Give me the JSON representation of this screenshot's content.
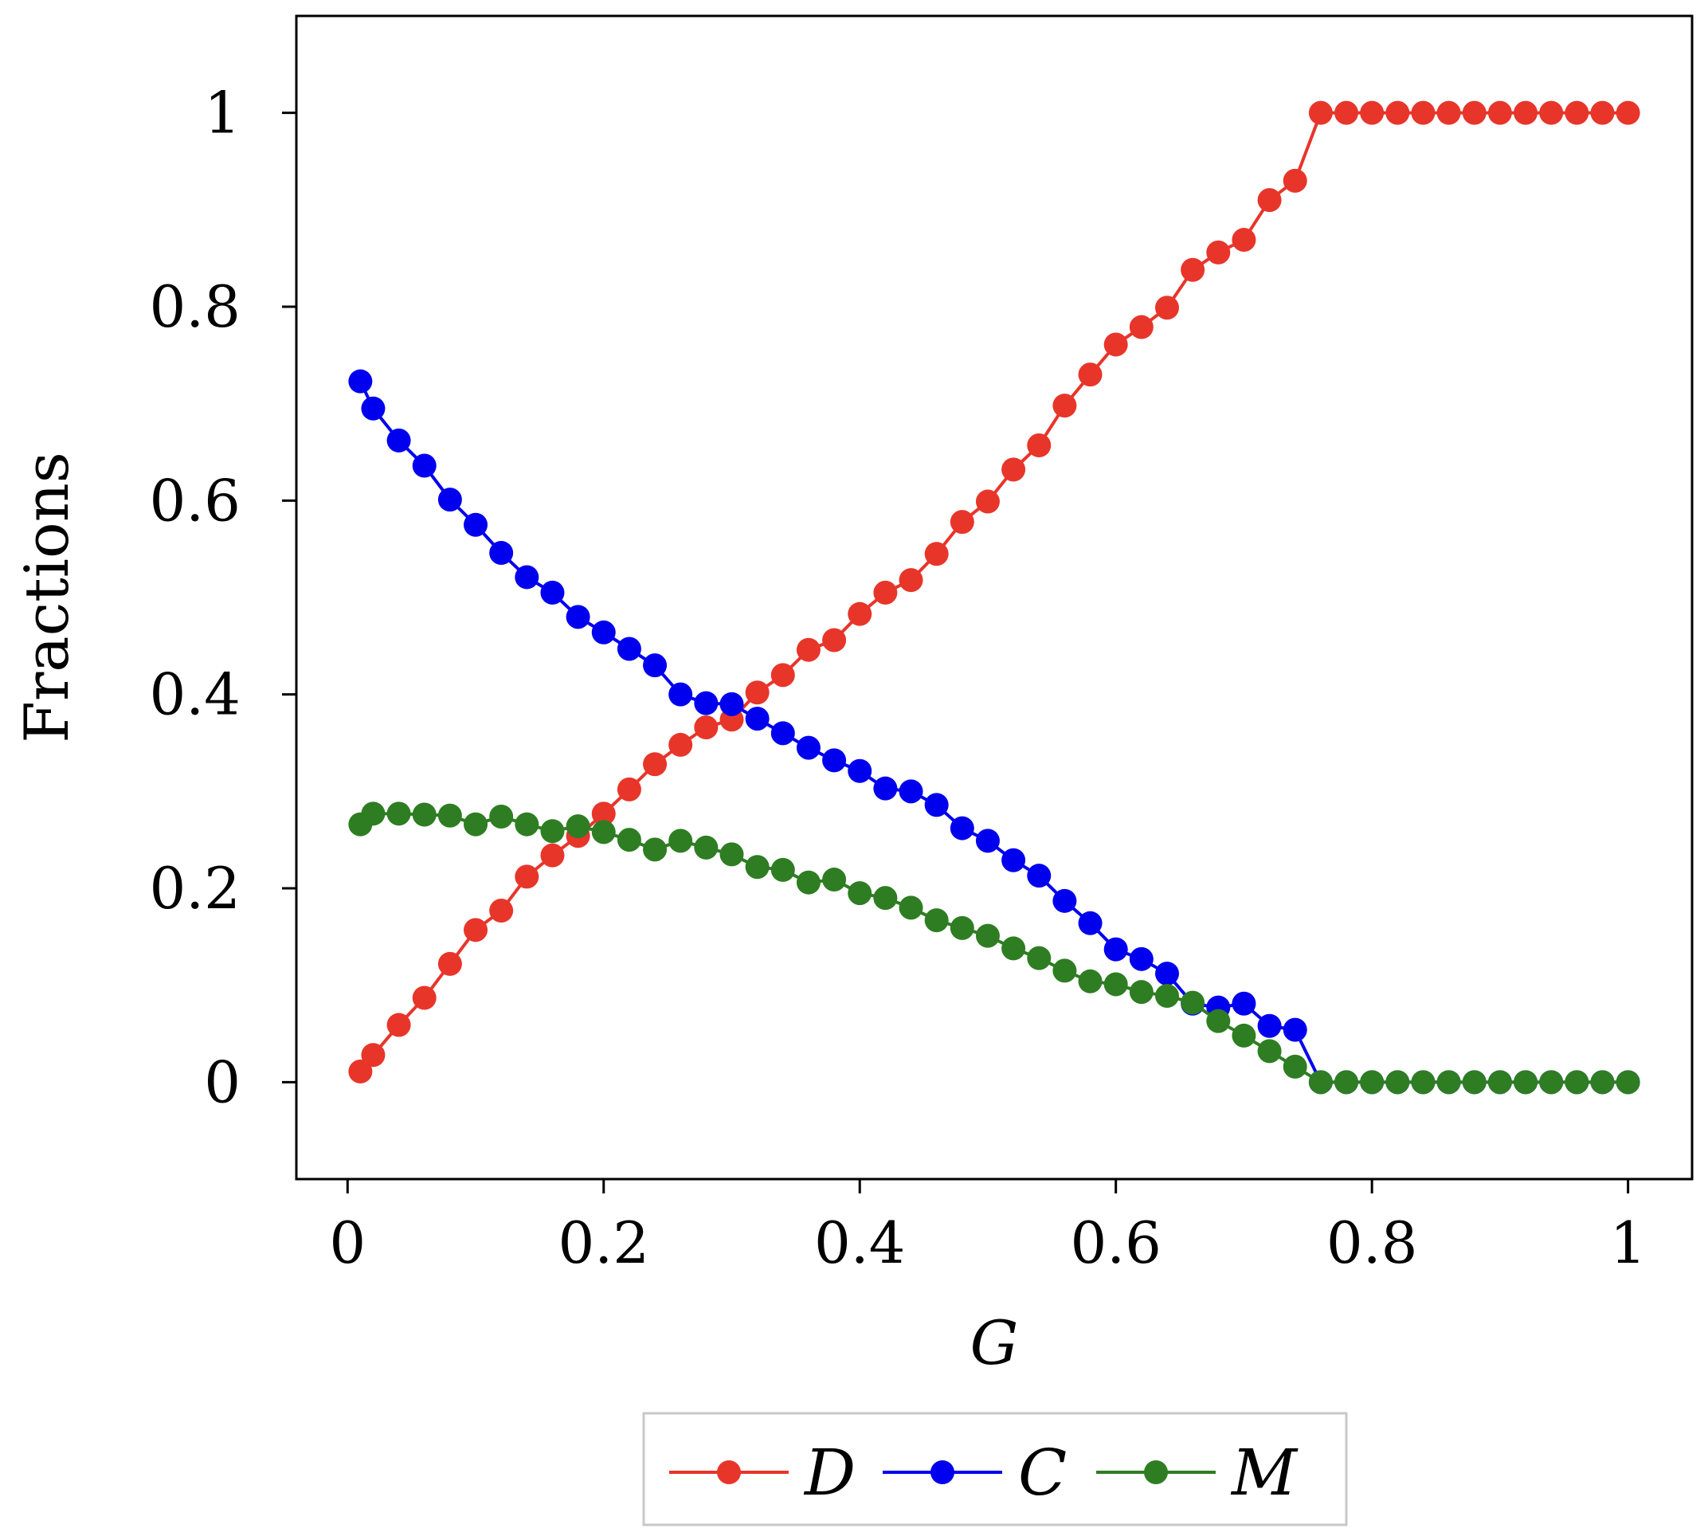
{
  "chart_data": {
    "type": "line",
    "title": "",
    "xlabel": "G",
    "ylabel": "Fractions",
    "xlim": [
      -0.04,
      1.05
    ],
    "ylim": [
      -0.1,
      1.1
    ],
    "xticks": [
      0,
      0.2,
      0.4,
      0.6,
      0.8,
      1
    ],
    "xtick_labels": [
      "0",
      "0.2",
      "0.4",
      "0.6",
      "0.8",
      "1"
    ],
    "yticks": [
      0,
      0.2,
      0.4,
      0.6,
      0.8,
      1
    ],
    "ytick_labels": [
      "0",
      "0.2",
      "0.4",
      "0.6",
      "0.8",
      "1"
    ],
    "grid": false,
    "legend_position": "bottom-center",
    "x": [
      0.01,
      0.02,
      0.04,
      0.06,
      0.08,
      0.1,
      0.12,
      0.14,
      0.16,
      0.18,
      0.2,
      0.22,
      0.24,
      0.26,
      0.28,
      0.3,
      0.32,
      0.34,
      0.36,
      0.38,
      0.4,
      0.42,
      0.44,
      0.46,
      0.48,
      0.5,
      0.52,
      0.54,
      0.56,
      0.58,
      0.6,
      0.62,
      0.64,
      0.66,
      0.68,
      0.7,
      0.72,
      0.74,
      0.76,
      0.78,
      0.8,
      0.82,
      0.84,
      0.86,
      0.88,
      0.9,
      0.92,
      0.94,
      0.96,
      0.98,
      1.0
    ],
    "series": [
      {
        "name": "D",
        "color": "#e8352a",
        "values": [
          0.011,
          0.028,
          0.059,
          0.087,
          0.122,
          0.157,
          0.177,
          0.212,
          0.234,
          0.254,
          0.277,
          0.302,
          0.328,
          0.348,
          0.366,
          0.374,
          0.402,
          0.42,
          0.446,
          0.456,
          0.483,
          0.505,
          0.518,
          0.545,
          0.578,
          0.599,
          0.632,
          0.657,
          0.698,
          0.73,
          0.761,
          0.779,
          0.799,
          0.838,
          0.856,
          0.869,
          0.91,
          0.93,
          1.0,
          1.0,
          1.0,
          1.0,
          1.0,
          1.0,
          1.0,
          1.0,
          1.0,
          1.0,
          1.0,
          1.0,
          1.0
        ]
      },
      {
        "name": "C",
        "color": "#0000ee",
        "values": [
          0.723,
          0.695,
          0.662,
          0.636,
          0.601,
          0.575,
          0.546,
          0.521,
          0.505,
          0.48,
          0.464,
          0.447,
          0.43,
          0.4,
          0.391,
          0.39,
          0.375,
          0.36,
          0.345,
          0.332,
          0.321,
          0.303,
          0.3,
          0.286,
          0.262,
          0.249,
          0.229,
          0.213,
          0.187,
          0.164,
          0.137,
          0.127,
          0.112,
          0.081,
          0.077,
          0.081,
          0.058,
          0.054,
          0.0,
          0.0,
          0.0,
          0.0,
          0.0,
          0.0,
          0.0,
          0.0,
          0.0,
          0.0,
          0.0,
          0.0,
          0.0
        ]
      },
      {
        "name": "M",
        "color": "#2e7d22",
        "values": [
          0.266,
          0.277,
          0.277,
          0.276,
          0.275,
          0.266,
          0.274,
          0.266,
          0.259,
          0.264,
          0.258,
          0.25,
          0.24,
          0.249,
          0.242,
          0.235,
          0.222,
          0.219,
          0.206,
          0.209,
          0.195,
          0.19,
          0.18,
          0.167,
          0.159,
          0.151,
          0.138,
          0.128,
          0.115,
          0.104,
          0.101,
          0.093,
          0.089,
          0.082,
          0.063,
          0.048,
          0.032,
          0.016,
          0.0,
          0.0,
          0.0,
          0.0,
          0.0,
          0.0,
          0.0,
          0.0,
          0.0,
          0.0,
          0.0,
          0.0,
          0.0
        ]
      }
    ]
  }
}
